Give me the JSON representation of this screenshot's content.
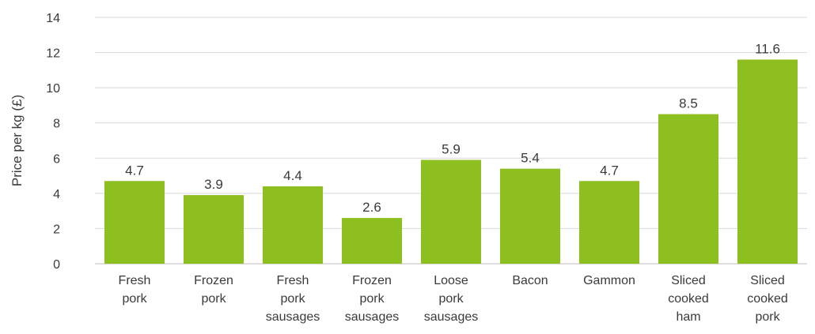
{
  "chart_data": {
    "type": "bar",
    "title": "",
    "xlabel": "",
    "ylabel": "Price per kg (£)",
    "ylim": [
      0,
      14
    ],
    "yticks": [
      0,
      2,
      4,
      6,
      8,
      10,
      12,
      14
    ],
    "grid": true,
    "legend": "none",
    "bar_color": "#8cbf1f",
    "categories": [
      [
        "Fresh",
        "pork"
      ],
      [
        "Frozen",
        "pork"
      ],
      [
        "Fresh",
        "pork",
        "sausages"
      ],
      [
        "Frozen",
        "pork",
        "sausages"
      ],
      [
        "Loose",
        "pork",
        "sausages"
      ],
      [
        "Bacon"
      ],
      [
        "Gammon"
      ],
      [
        "Sliced",
        "cooked",
        "ham"
      ],
      [
        "Sliced",
        "cooked",
        "pork"
      ]
    ],
    "values": [
      4.7,
      3.9,
      4.4,
      2.6,
      5.9,
      5.4,
      4.7,
      8.5,
      11.6
    ],
    "value_labels": [
      "4.7",
      "3.9",
      "4.4",
      "2.6",
      "5.9",
      "5.4",
      "4.7",
      "8.5",
      "11.6"
    ]
  }
}
